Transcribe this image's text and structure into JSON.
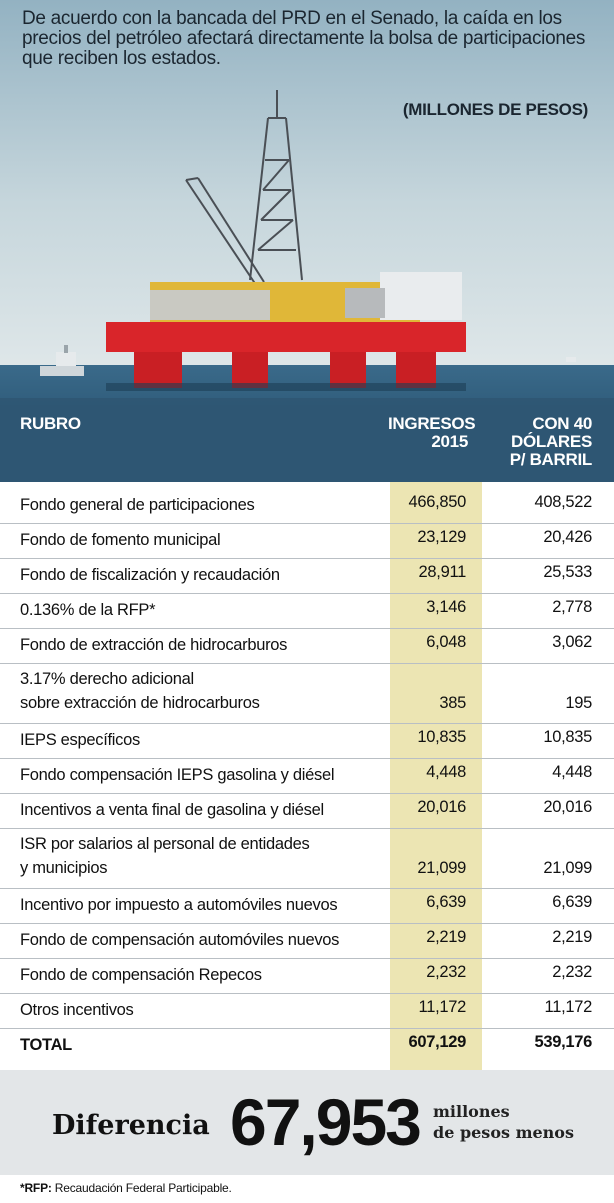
{
  "intro": "De acuerdo con la bancada del PRD en el Senado, la caída en los precios del petróleo afectará directamente la bolsa de participaciones que reciben los estados.",
  "unit_label": "(MILLONES DE PESOS)",
  "columns": {
    "rubro": "RUBRO",
    "ingresos": [
      "INGRESOS",
      "2015"
    ],
    "con40": [
      "CON 40",
      "DÓLARES",
      "P/ BARRIL"
    ]
  },
  "chart_data": {
    "type": "table",
    "columns": [
      "RUBRO",
      "INGRESOS 2015",
      "CON 40 DÓLARES P/ BARRIL"
    ],
    "rows": [
      {
        "label": [
          "Fondo general de participaciones"
        ],
        "ingresos": "466,850",
        "con40": "408,522"
      },
      {
        "label": [
          "Fondo de fomento municipal"
        ],
        "ingresos": "23,129",
        "con40": "20,426"
      },
      {
        "label": [
          "Fondo de fiscalización y recaudación"
        ],
        "ingresos": "28,911",
        "con40": "25,533"
      },
      {
        "label": [
          "0.136% de la RFP*"
        ],
        "ingresos": "3,146",
        "con40": "2,778"
      },
      {
        "label": [
          "Fondo de extracción de hidrocarburos"
        ],
        "ingresos": "6,048",
        "con40": "3,062"
      },
      {
        "label": [
          "3.17% derecho adicional",
          "sobre extracción de hidrocarburos"
        ],
        "ingresos": "385",
        "con40": "195"
      },
      {
        "label": [
          "IEPS específicos"
        ],
        "ingresos": "10,835",
        "con40": "10,835"
      },
      {
        "label": [
          "Fondo compensación IEPS gasolina y diésel"
        ],
        "ingresos": "4,448",
        "con40": "4,448"
      },
      {
        "label": [
          "Incentivos a venta final de gasolina y diésel"
        ],
        "ingresos": "20,016",
        "con40": "20,016"
      },
      {
        "label": [
          "ISR por salarios al personal de entidades",
          "y municipios"
        ],
        "ingresos": "21,099",
        "con40": "21,099"
      },
      {
        "label": [
          "Incentivo por impuesto a automóviles nuevos"
        ],
        "ingresos": "6,639",
        "con40": "6,639"
      },
      {
        "label": [
          "Fondo de compensación automóviles nuevos"
        ],
        "ingresos": "2,219",
        "con40": "2,219"
      },
      {
        "label": [
          "Fondo de compensación Repecos"
        ],
        "ingresos": "2,232",
        "con40": "2,232"
      },
      {
        "label": [
          "Otros incentivos"
        ],
        "ingresos": "11,172",
        "con40": "11,172"
      }
    ],
    "total": {
      "label": "TOTAL",
      "ingresos": "607,129",
      "con40": "539,176"
    }
  },
  "difference": {
    "label": "Diferencia",
    "value": "67,953",
    "unit": [
      "millones",
      "de pesos menos"
    ]
  },
  "footnote": {
    "term": "*RFP:",
    "text": " Recaudación Federal Participable."
  },
  "colors": {
    "sky_top": "#9bb8c6",
    "sky_bottom": "#d9e3e6",
    "sea": "#2f5a78",
    "header_band": "#3d6784",
    "highlight_column": "#ece5b3",
    "difference_band": "#e3e6e8",
    "rig_red": "#d9252a"
  }
}
